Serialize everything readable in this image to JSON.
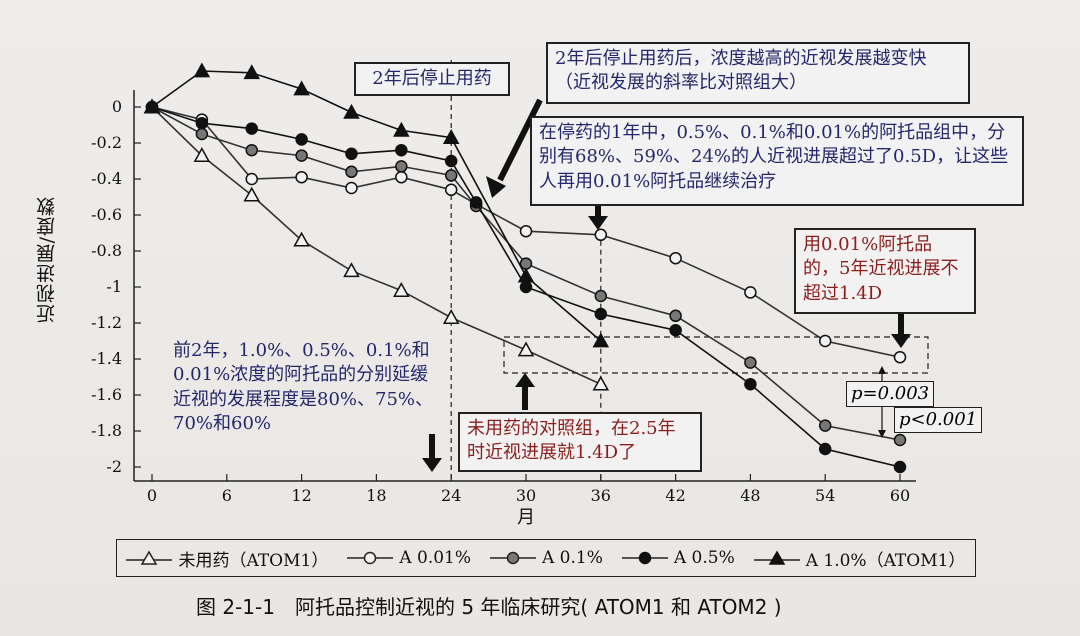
{
  "chart_data": {
    "type": "line",
    "xlabel": "月",
    "ylabel": "近视进展/度数",
    "x_ticks": [
      0,
      6,
      12,
      18,
      24,
      30,
      36,
      42,
      48,
      54,
      60
    ],
    "y_ticks": [
      0,
      -0.2,
      -0.4,
      -0.6,
      -0.8,
      -1,
      -1.2,
      -1.4,
      -1.6,
      -1.8,
      -2
    ],
    "y_tick_labels": [
      "0",
      "-0.2",
      "-0.4",
      "-0.6",
      "-0.8",
      "-1",
      "-1.2",
      "-1.4",
      "-1.6",
      "-1.8",
      "-2"
    ],
    "xlim": [
      -1,
      61
    ],
    "ylim": [
      -2.05,
      0.25
    ],
    "series": [
      {
        "name": "未用药（ATOM1）",
        "marker": "triangle-open",
        "color": "#333333",
        "x": [
          0,
          4,
          8,
          12,
          16,
          20,
          24,
          30,
          36
        ],
        "y": [
          0,
          -0.27,
          -0.49,
          -0.74,
          -0.91,
          -1.02,
          -1.17,
          -1.35,
          -1.54
        ]
      },
      {
        "name": "A 0.01%",
        "marker": "circle-open",
        "color": "#333333",
        "x": [
          0,
          4,
          8,
          12,
          16,
          20,
          24,
          26,
          30,
          36,
          42,
          48,
          54,
          60
        ],
        "y": [
          0,
          -0.07,
          -0.4,
          -0.39,
          -0.45,
          -0.39,
          -0.46,
          -0.54,
          -0.69,
          -0.71,
          -0.84,
          -1.03,
          -1.3,
          -1.39
        ]
      },
      {
        "name": "A 0.1%",
        "marker": "circle-gray",
        "color": "#333333",
        "x": [
          0,
          4,
          8,
          12,
          16,
          20,
          24,
          26,
          30,
          36,
          42,
          48,
          54,
          60
        ],
        "y": [
          0,
          -0.15,
          -0.24,
          -0.27,
          -0.36,
          -0.33,
          -0.38,
          -0.55,
          -0.87,
          -1.05,
          -1.16,
          -1.42,
          -1.77,
          -1.85
        ]
      },
      {
        "name": "A 0.5%",
        "marker": "circle-filled",
        "color": "#111111",
        "x": [
          0,
          4,
          8,
          12,
          16,
          20,
          24,
          26,
          30,
          36,
          42,
          48,
          54,
          60
        ],
        "y": [
          0,
          -0.09,
          -0.12,
          -0.18,
          -0.26,
          -0.24,
          -0.3,
          -0.53,
          -1.0,
          -1.15,
          -1.24,
          -1.54,
          -1.9,
          -2.0
        ]
      },
      {
        "name": "A 1.0%（ATOM1）",
        "marker": "triangle-filled",
        "color": "#111111",
        "x": [
          0,
          4,
          8,
          12,
          16,
          20,
          24,
          30,
          36
        ],
        "y": [
          0,
          0.2,
          0.19,
          0.1,
          -0.03,
          -0.13,
          -0.17,
          -0.94,
          -1.3
        ]
      }
    ]
  },
  "annotations": {
    "stop_label": "2年后停止用药",
    "after_stop": "2年后停止用药后，浓度越高的近视发展越变快（近视发展的斜率比对照组大）",
    "one_year": "在停药的1年中，0.5%、0.1%和0.01%的阿托品组中，分别有68%、59%、24%的人近视进展超过了0.5D，让这些人再用0.01%阿托品继续治疗",
    "low_dose": "用0.01%阿托品的，5年近视进展不超过1.4D",
    "first_two_years": "前2年，1.0%、0.5%、0.1%和0.01%浓度的阿托品的分别延缓近视的发展程度是80%、75%、70%和60%",
    "control": "未用药的对照组，在2.5年时近视进展就1.4D了",
    "p1": "p=0.003",
    "p2": "p<0.001"
  },
  "legend": {
    "item1": "未用药（ATOM1）",
    "item2": "A 0.01%",
    "item3": "A 0.1%",
    "item4": "A 0.5%",
    "item5": "A 1.0%（ATOM1）"
  },
  "caption": "图 2-1-1　阿托品控制近视的 5 年临床研究( ATOM1 和 ATOM2 )"
}
